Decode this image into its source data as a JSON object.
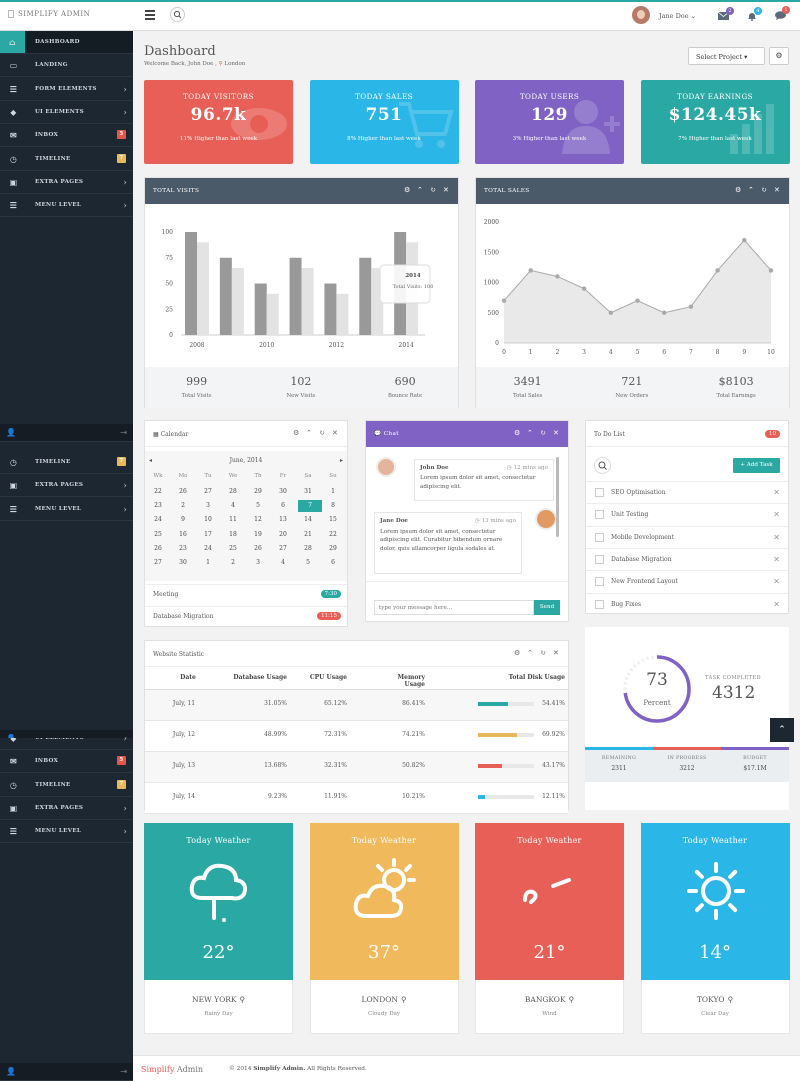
{
  "app": {
    "logo": "SIMPLIFY ADMIN",
    "footer_brand_a": "Simplify",
    "footer_brand_b": "Admin",
    "footer_copy": "© 2014",
    "footer_name": "Simplify Admin.",
    "footer_rights": "All Rights Reserved."
  },
  "header": {
    "user_name": "Jane Doe",
    "badges": {
      "mail": "2",
      "bell": "4",
      "chat": "1"
    }
  },
  "sidebar": {
    "items": [
      {
        "label": "DASHBOARD",
        "icon": "home-icon",
        "active": true
      },
      {
        "label": "LANDING",
        "icon": "monitor-icon"
      },
      {
        "label": "FORM ELEMENTS",
        "icon": "list-icon",
        "chevron": true
      },
      {
        "label": "UI ELEMENTS",
        "icon": "tag-icon",
        "chevron": true
      },
      {
        "label": "INBOX",
        "icon": "mail-icon",
        "badge": "5",
        "badge_color": "#e2574c"
      },
      {
        "label": "TIMELINE",
        "icon": "clock-icon",
        "badge": "7",
        "badge_color": "#e8b95c"
      },
      {
        "label": "EXTRA PAGES",
        "icon": "gift-icon",
        "chevron": true
      },
      {
        "label": "MENU LEVEL",
        "icon": "list-icon",
        "chevron": true
      }
    ],
    "repeat_a": [
      {
        "label": "TIMELINE",
        "icon": "clock-icon",
        "badge": "7",
        "badge_color": "#e8b95c"
      },
      {
        "label": "EXTRA PAGES",
        "icon": "gift-icon",
        "chevron": true
      },
      {
        "label": "MENU LEVEL",
        "icon": "list-icon",
        "chevron": true
      }
    ],
    "repeat_b": [
      {
        "label": "UI ELEMENTS",
        "icon": "tag-icon",
        "chevron": true
      },
      {
        "label": "INBOX",
        "icon": "mail-icon",
        "badge": "5",
        "badge_color": "#e2574c"
      },
      {
        "label": "TIMELINE",
        "icon": "clock-icon",
        "badge": "7",
        "badge_color": "#e8b95c"
      },
      {
        "label": "EXTRA PAGES",
        "icon": "gift-icon",
        "chevron": true
      },
      {
        "label": "MENU LEVEL",
        "icon": "list-icon",
        "chevron": true
      }
    ]
  },
  "page": {
    "title": "Dashboard",
    "welcome": "Welcome Back, John Doe ,",
    "location": "London",
    "select_project": "Select Project"
  },
  "stats": [
    {
      "title": "TODAY VISITORS",
      "value": "96.7k",
      "sub": "11% Higher than last week",
      "color": "#e75f56"
    },
    {
      "title": "TODAY SALES",
      "value": "751",
      "sub": "8% Higher than last week",
      "color": "#2ab6e6"
    },
    {
      "title": "TODAY USERS",
      "value": "129",
      "sub": "3% Higher than last week",
      "color": "#7f62c4"
    },
    {
      "title": "TODAY EARNINGS",
      "value": "$124.45k",
      "sub": "7% Higher than last week",
      "color": "#2aa9a4"
    }
  ],
  "visits": {
    "title": "TOTAL VISITS",
    "summary": [
      {
        "n": "999",
        "l": "Total Visits"
      },
      {
        "n": "102",
        "l": "New Visits"
      },
      {
        "n": "690",
        "l": "Bounce Rate"
      }
    ],
    "tooltip_title": "2014",
    "tooltip_text": "Total Visits: 100"
  },
  "sales": {
    "title": "TOTAL SALES",
    "summary": [
      {
        "n": "3491",
        "l": "Total Sales"
      },
      {
        "n": "721",
        "l": "New Orders"
      },
      {
        "n": "$8103",
        "l": "Total Earnings"
      }
    ]
  },
  "chart_data": [
    {
      "type": "bar",
      "categories": [
        "2008",
        "",
        "2010",
        "",
        "2012",
        "",
        "2014"
      ],
      "ylim": [
        0,
        100
      ],
      "yticks": [
        "0",
        "25",
        "50",
        "75",
        "100"
      ],
      "series": [
        {
          "values": [
            100,
            75,
            50,
            75,
            50,
            75,
            100
          ],
          "color": "#999"
        },
        {
          "values": [
            90,
            65,
            40,
            65,
            40,
            65,
            90
          ],
          "color": "#e3e3e3"
        }
      ]
    },
    {
      "type": "area",
      "x": [
        0,
        1,
        2,
        3,
        4,
        5,
        6,
        7,
        8,
        9,
        10
      ],
      "values": [
        700,
        1200,
        1100,
        900,
        500,
        700,
        500,
        600,
        1200,
        1700,
        1200
      ],
      "ylim": [
        0,
        2000
      ],
      "yticks": [
        "0",
        "500",
        "1000",
        "1500",
        "2000"
      ]
    }
  ],
  "calendar": {
    "title": "Calendar",
    "month": "June, 2014",
    "days": [
      "Wk",
      "Mo",
      "Tu",
      "We",
      "Th",
      "Fr",
      "Sa",
      "Su"
    ],
    "rows": [
      [
        "22",
        "26",
        "27",
        "28",
        "29",
        "30",
        "31",
        "1"
      ],
      [
        "23",
        "2",
        "3",
        "4",
        "5",
        "6",
        "7",
        "8"
      ],
      [
        "24",
        "9",
        "10",
        "11",
        "12",
        "13",
        "14",
        "15"
      ],
      [
        "25",
        "16",
        "17",
        "18",
        "19",
        "20",
        "21",
        "22"
      ],
      [
        "26",
        "23",
        "24",
        "25",
        "26",
        "27",
        "28",
        "29"
      ],
      [
        "27",
        "30",
        "1",
        "2",
        "3",
        "4",
        "5",
        "6"
      ]
    ],
    "selected": "7",
    "events": [
      {
        "label": "Meeting",
        "time": "7:30",
        "color": "#2aa9a4"
      },
      {
        "label": "Database Migration",
        "time": "11:15",
        "color": "#e75f56"
      }
    ]
  },
  "chat": {
    "title": "Chat",
    "messages": [
      {
        "name": "John Doe",
        "time": "12 mins ago",
        "text": "Lorem ipsum dolor sit amet, consectetur adipiscing elit."
      },
      {
        "name": "Jane Doe",
        "time": "13 mins ago",
        "text": "Lorem ipsum dolor sit amet, consectetur adipiscing elit. Curabitur bibendum ornare dolor, quis ullamcorper ligula sodales at."
      }
    ],
    "placeholder": "type your message here...",
    "send": "Send"
  },
  "todo": {
    "title": "To Do List",
    "count": "10",
    "add": "Add Task",
    "items": [
      "SEO Optimisation",
      "Unit Testing",
      "Mobile Development",
      "Database Migration",
      "New Frontend Layout",
      "Bug Fixes"
    ]
  },
  "website": {
    "title": "Website Statistic",
    "columns": [
      "Date",
      "Database Usage",
      "CPU Usage",
      "Memory Usage",
      "Total Disk Usage"
    ],
    "rows": [
      {
        "date": "July, 11",
        "db": "31.05%",
        "cpu": "65.12%",
        "mem": "86.41%",
        "disk": "54.41%",
        "pct": 54.41,
        "color": "#2aa9a4"
      },
      {
        "date": "July, 12",
        "db": "48.99%",
        "cpu": "72.31%",
        "mem": "74.21%",
        "disk": "69.92%",
        "pct": 69.92,
        "color": "#e8b95c"
      },
      {
        "date": "July, 13",
        "db": "13.68%",
        "cpu": "32.31%",
        "mem": "50.82%",
        "disk": "43.17%",
        "pct": 43.17,
        "color": "#e75f56"
      },
      {
        "date": "July, 14",
        "db": "9.23%",
        "cpu": "11.91%",
        "mem": "10.21%",
        "disk": "12.11%",
        "pct": 12.11,
        "color": "#2ab6e6"
      }
    ]
  },
  "task": {
    "percent": "73",
    "percent_label": "Percent",
    "pct_value": 73,
    "completed_label": "TASK COMPLETED",
    "completed": "4312",
    "footer": [
      {
        "l": "REMAINING",
        "n": "2311"
      },
      {
        "l": "IN PROGRESS",
        "n": "3212"
      },
      {
        "l": "BUDGET",
        "n": "$17.1M"
      }
    ]
  },
  "weather": [
    {
      "title": "Today Weather",
      "temp": "22°",
      "city": "NEW YORK",
      "desc": "Rainy Day",
      "color": "#2aa9a4",
      "icon": "cloud-rain-icon"
    },
    {
      "title": "Today Weather",
      "temp": "37°",
      "city": "LONDON",
      "desc": "Cloudy Day",
      "color": "#f0b95c",
      "icon": "sun-cloud-icon"
    },
    {
      "title": "Today Weather",
      "temp": "21°",
      "city": "BANGKOK",
      "desc": "Wind",
      "color": "#e75f56",
      "icon": "wind-icon"
    },
    {
      "title": "Today Weather",
      "temp": "14°",
      "city": "TOKYO",
      "desc": "Clear Day",
      "color": "#2ab6e6",
      "icon": "sun-icon"
    }
  ]
}
